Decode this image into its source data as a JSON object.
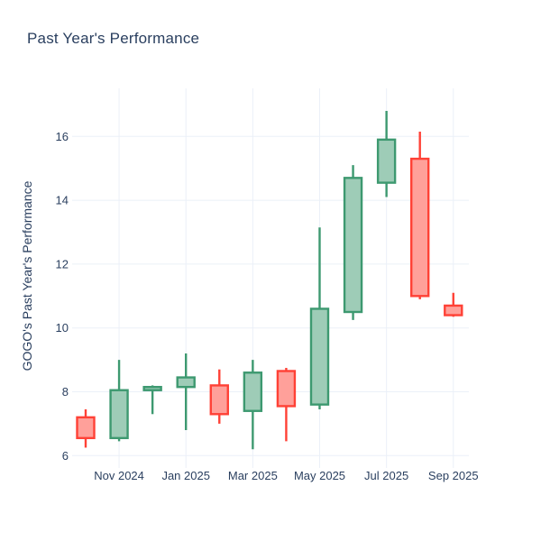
{
  "title": "Past Year's Performance",
  "colors": {
    "background": "#ffffff",
    "text": "#2a3f5f",
    "grid": "#ebf0f8",
    "increasing_line": "#3d9970",
    "increasing_fill": "#9eccb7",
    "decreasing_line": "#ff4136",
    "decreasing_fill": "#ffa09a"
  },
  "chart_data": {
    "type": "candlestick",
    "title": "Past Year's Performance",
    "ylabel": "GOGO's Past Year's Performance",
    "xlabel": "",
    "grid": true,
    "legend": "none",
    "y_ticks": [
      6,
      8,
      10,
      12,
      14,
      16
    ],
    "ylim": [
      5.6,
      17.5
    ],
    "x_ticks": [
      {
        "label": "Nov 2024",
        "candle_index": 1
      },
      {
        "label": "Jan 2025",
        "candle_index": 3
      },
      {
        "label": "Mar 2025",
        "candle_index": 5
      },
      {
        "label": "May 2025",
        "candle_index": 7
      },
      {
        "label": "Jul 2025",
        "candle_index": 9
      },
      {
        "label": "Sep 2025",
        "candle_index": 11
      }
    ],
    "candles": [
      {
        "x": "Oct 2024",
        "open": 7.2,
        "high": 7.45,
        "low": 6.25,
        "close": 6.55
      },
      {
        "x": "Nov 2024",
        "open": 6.55,
        "high": 9.0,
        "low": 6.45,
        "close": 8.05
      },
      {
        "x": "Dec 2024",
        "open": 8.05,
        "high": 8.2,
        "low": 7.3,
        "close": 8.15
      },
      {
        "x": "Jan 2025",
        "open": 8.15,
        "high": 9.2,
        "low": 6.8,
        "close": 8.45
      },
      {
        "x": "Feb 2025",
        "open": 8.2,
        "high": 8.7,
        "low": 7.0,
        "close": 7.3
      },
      {
        "x": "Mar 2025",
        "open": 7.4,
        "high": 9.0,
        "low": 6.2,
        "close": 8.6
      },
      {
        "x": "Apr 2025",
        "open": 8.65,
        "high": 8.75,
        "low": 6.45,
        "close": 7.55
      },
      {
        "x": "May 2025",
        "open": 7.6,
        "high": 13.15,
        "low": 7.45,
        "close": 10.6
      },
      {
        "x": "Jun 2025",
        "open": 10.5,
        "high": 15.1,
        "low": 10.25,
        "close": 14.7
      },
      {
        "x": "Jul 2025",
        "open": 14.55,
        "high": 16.8,
        "low": 14.1,
        "close": 15.9
      },
      {
        "x": "Aug 2025",
        "open": 15.3,
        "high": 16.15,
        "low": 10.9,
        "close": 11.0
      },
      {
        "x": "Sep 2025",
        "open": 10.7,
        "high": 11.1,
        "low": 10.35,
        "close": 10.4
      }
    ]
  }
}
